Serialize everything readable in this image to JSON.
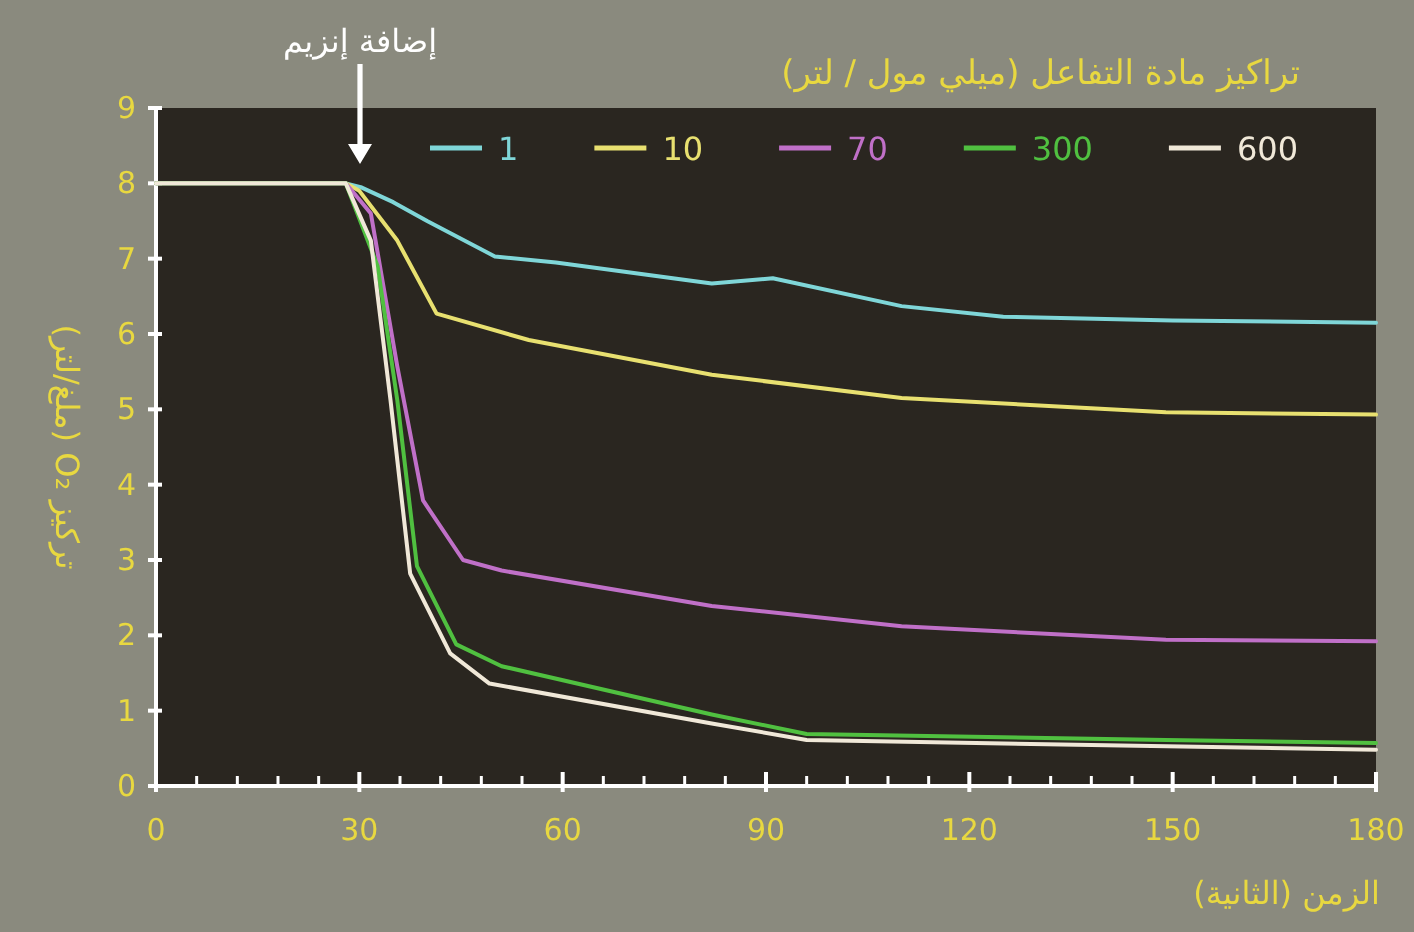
{
  "chart_data": {
    "type": "line",
    "legend_title": "تراكيز مادة التفاعل (ميلي مول / لتر)",
    "xlabel": "الزمن (الثانية)",
    "ylabel": "تركيز O₂ (ملغ/لتر)",
    "annotations": [
      "إضافة إنزيم"
    ],
    "xlim": [
      0,
      180
    ],
    "xticks": [
      0,
      30,
      60,
      90,
      120,
      150,
      180
    ],
    "ylim": [
      0,
      9
    ],
    "yticks": [
      0,
      1,
      2,
      3,
      4,
      5,
      6,
      7,
      8,
      9
    ],
    "legend": "top",
    "series": [
      {
        "name": "1",
        "color": "#7fd6d8",
        "x": [
          0,
          28,
          30.2,
          35,
          40,
          50,
          59,
          82,
          91,
          110,
          125,
          150,
          180
        ],
        "values": [
          8,
          8,
          7.95,
          7.75,
          7.5,
          7.03,
          6.95,
          6.67,
          6.74,
          6.37,
          6.23,
          6.18,
          6.15
        ]
      },
      {
        "name": "10",
        "color": "#e8e070",
        "x": [
          0,
          28,
          30,
          35.6,
          41.4,
          55,
          82,
          110,
          149,
          180
        ],
        "values": [
          8,
          8,
          7.9,
          7.24,
          6.27,
          5.92,
          5.46,
          5.15,
          4.96,
          4.93
        ]
      },
      {
        "name": "70",
        "color": "#c070c8",
        "x": [
          0,
          28,
          31.7,
          35.6,
          39.4,
          45.3,
          51,
          82,
          110,
          149,
          180
        ],
        "values": [
          8,
          8,
          7.6,
          5.57,
          3.79,
          3.0,
          2.86,
          2.39,
          2.12,
          1.94,
          1.92
        ]
      },
      {
        "name": "300",
        "color": "#50c040",
        "x": [
          0,
          28,
          32.7,
          35.6,
          38.5,
          44.3,
          51,
          82,
          96,
          149,
          180
        ],
        "values": [
          8,
          8,
          6.9,
          5.12,
          2.92,
          1.88,
          1.59,
          0.95,
          0.69,
          0.61,
          0.57
        ]
      },
      {
        "name": "600",
        "color": "#f0e8d8",
        "x": [
          0,
          28,
          31.7,
          34.6,
          37.5,
          43.4,
          49.2,
          82,
          96,
          180
        ],
        "values": [
          8,
          8,
          7.24,
          5.12,
          2.82,
          1.76,
          1.36,
          0.83,
          0.61,
          0.48
        ]
      }
    ]
  }
}
